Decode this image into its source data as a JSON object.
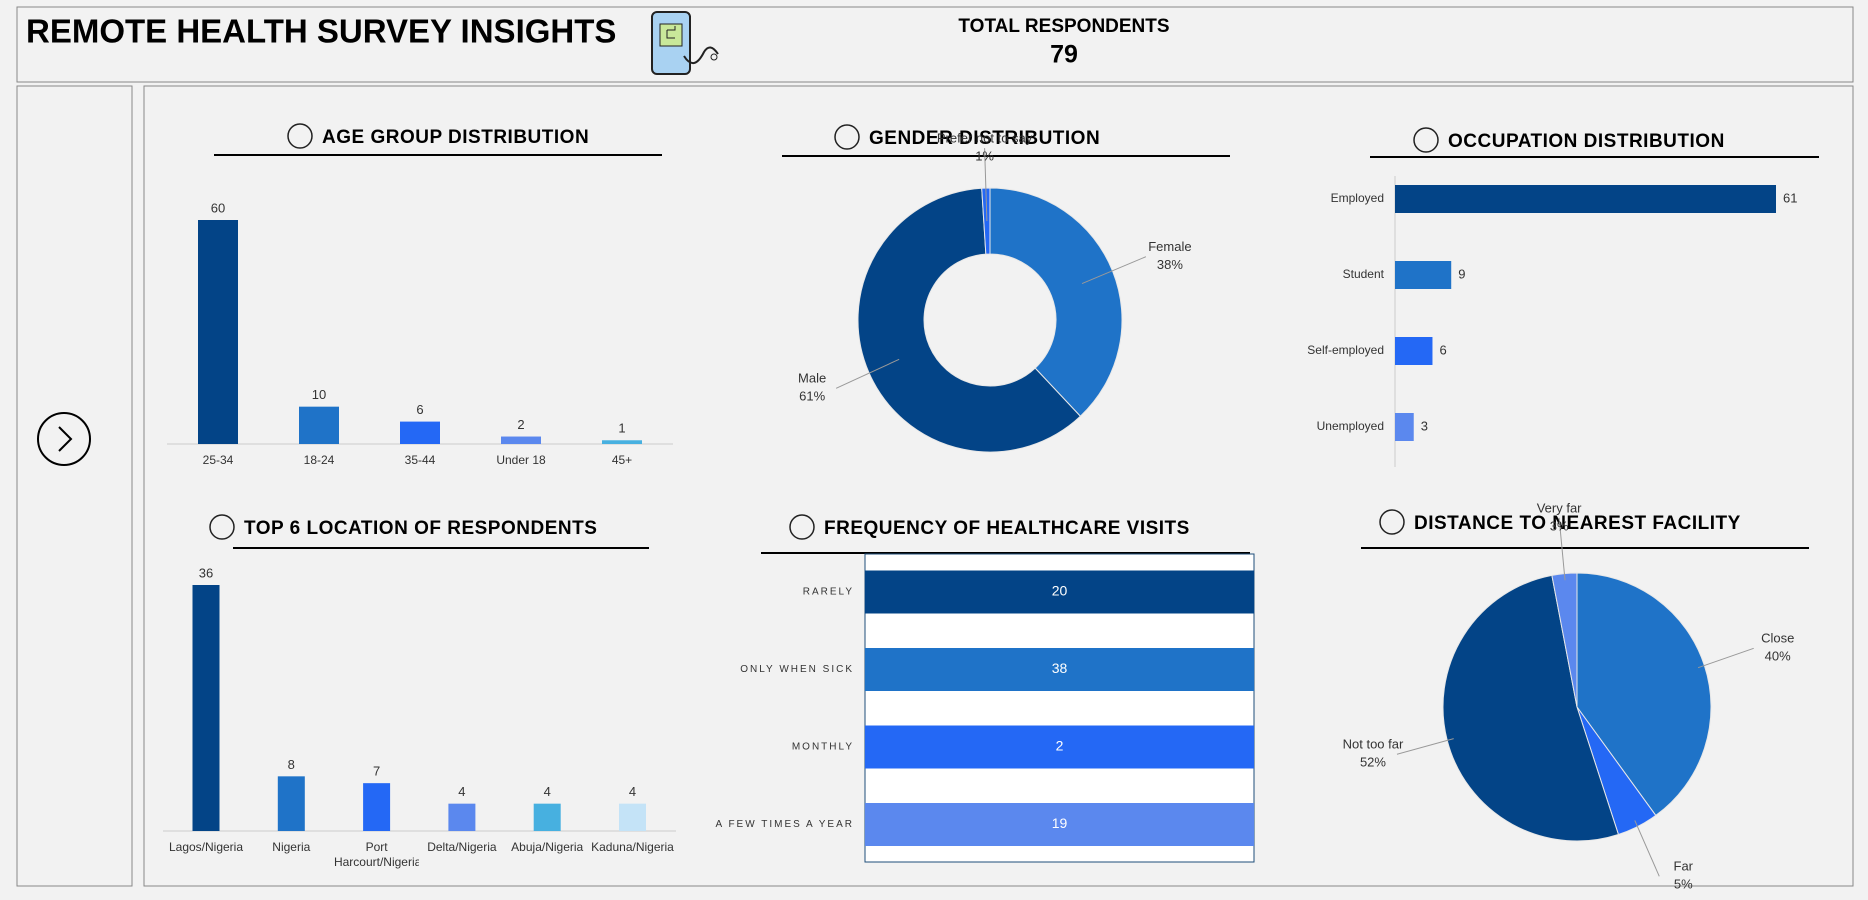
{
  "header": {
    "title": "REMOTE HEALTH SURVEY INSIGHTS"
  },
  "kpi": {
    "label": "TOTAL RESPONDENTS",
    "value": 79
  },
  "chart_data": [
    {
      "type": "bar",
      "title": "AGE GROUP DISTRIBUTION",
      "categories": [
        "25-34",
        "18-24",
        "35-44",
        "Under 18",
        "45+"
      ],
      "values": [
        60,
        10,
        6,
        2,
        1
      ],
      "colors": [
        "#034487",
        "#1f73c8",
        "#2468f5",
        "#5b88ee",
        "#47b0e0"
      ]
    },
    {
      "type": "donut",
      "title": "GENDER DISTRIBUTION",
      "categories": [
        "Female",
        "Male",
        "Prefer not to say"
      ],
      "values": [
        38,
        61,
        1
      ],
      "value_labels": [
        "38%",
        "61%",
        "1%"
      ],
      "colors": [
        "#1f73c8",
        "#034487",
        "#2468f5"
      ]
    },
    {
      "type": "hbar",
      "title": "OCCUPATION DISTRIBUTION",
      "categories": [
        "Employed",
        "Student",
        "Self-employed",
        "Unemployed"
      ],
      "values": [
        61,
        9,
        6,
        3
      ],
      "colors": [
        "#034487",
        "#1f73c8",
        "#2468f5",
        "#5b88ee"
      ]
    },
    {
      "type": "bar",
      "title": "TOP 6 LOCATION OF RESPONDENTS",
      "categories": [
        "Lagos/Nigeria",
        "Nigeria",
        "Port Harcourt/Nigeria",
        "Delta/Nigeria",
        "Abuja/Nigeria",
        "Kaduna/Nigeria"
      ],
      "values": [
        36,
        8,
        7,
        4,
        4,
        4
      ],
      "colors": [
        "#034487",
        "#1f73c8",
        "#2468f5",
        "#5b88ee",
        "#47b0e0",
        "#c4e3f7"
      ]
    },
    {
      "type": "hbar",
      "title": "FREQUENCY OF HEALTHCARE VISITS",
      "stacked_percent": true,
      "categories": [
        "RARELY",
        "ONLY WHEN SICK",
        "MONTHLY",
        "A FEW TIMES A YEAR"
      ],
      "values": [
        20,
        38,
        2,
        19
      ],
      "colors": [
        "#034487",
        "#1f73c8",
        "#2468f5",
        "#5b88ee"
      ]
    },
    {
      "type": "pie",
      "title": "DISTANCE TO NEAREST FACILITY",
      "categories": [
        "Close",
        "Far",
        "Not too far",
        "Very far"
      ],
      "values": [
        40,
        5,
        52,
        3
      ],
      "value_labels": [
        "40%",
        "5%",
        "52%",
        "3%"
      ],
      "colors": [
        "#1f73c8",
        "#2468f5",
        "#034487",
        "#5b88ee"
      ]
    }
  ]
}
